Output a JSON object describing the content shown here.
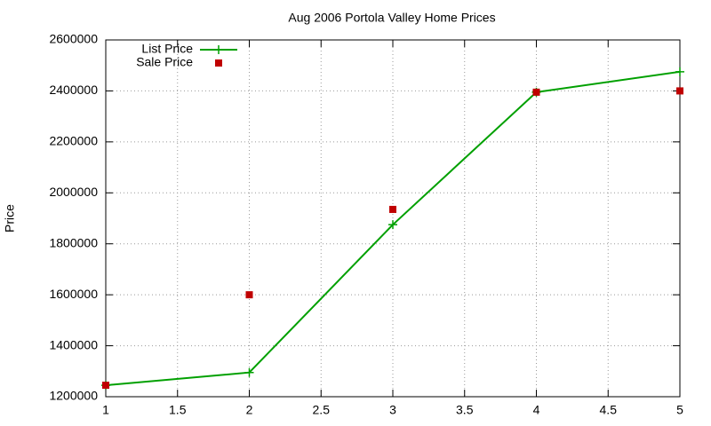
{
  "chart_data": {
    "type": "line",
    "title": "Aug 2006 Portola Valley Home Prices",
    "ylabel": "Price",
    "x": [
      1,
      2,
      3,
      4,
      5
    ],
    "series": [
      {
        "name": "List Price",
        "color": "#00a000",
        "mode": "lines+markers",
        "marker": "plus",
        "values": [
          1245000,
          1295000,
          1875000,
          2395000,
          2475000
        ]
      },
      {
        "name": "Sale Price",
        "color": "#c00000",
        "mode": "markers",
        "marker": "square",
        "values": [
          1245000,
          1600000,
          1935000,
          2395000,
          2400000
        ]
      }
    ],
    "xlim": [
      1,
      5
    ],
    "xticks": [
      1,
      1.5,
      2,
      2.5,
      3,
      3.5,
      4,
      4.5,
      5
    ],
    "ylim": [
      1200000,
      2600000
    ],
    "yticks": [
      1200000,
      1400000,
      1600000,
      1800000,
      2000000,
      2200000,
      2400000,
      2600000
    ],
    "grid": true,
    "legend": "top-left"
  }
}
